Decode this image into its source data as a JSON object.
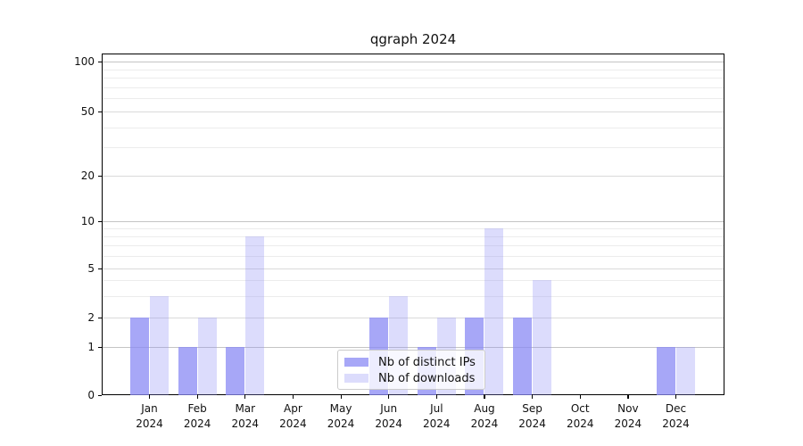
{
  "figure": {
    "background": "#ffffff",
    "text_color": "#111111",
    "spine_color": "#000000"
  },
  "chart_data": {
    "type": "bar",
    "title": "qgraph 2024",
    "xlabel": "",
    "ylabel": "",
    "categories": [
      "Jan",
      "Feb",
      "Mar",
      "Apr",
      "May",
      "Jun",
      "Jul",
      "Aug",
      "Sep",
      "Oct",
      "Nov",
      "Dec"
    ],
    "year_label": "2024",
    "series": [
      {
        "name": "Nb of distinct IPs",
        "color": "rgba(138,138,244,0.75)",
        "values": [
          2,
          1,
          1,
          0,
          0,
          2,
          1,
          2,
          2,
          0,
          0,
          1
        ]
      },
      {
        "name": "Nb of downloads",
        "color": "rgba(138,138,244,0.30)",
        "values": [
          3,
          2,
          8,
          0,
          0,
          3,
          2,
          9,
          4,
          0,
          0,
          1
        ]
      }
    ],
    "yscale": "symlog",
    "ylim": [
      0,
      112
    ],
    "y_major_ticks": [
      0,
      1,
      2,
      5,
      10,
      20,
      50,
      100
    ],
    "y_minor_gridlines": [
      3,
      4,
      6,
      7,
      8,
      9,
      30,
      40,
      60,
      70,
      80,
      90
    ],
    "grid": "horizontal",
    "gridline_color_power10": "#c4c4c4",
    "gridline_color_major": "#dadada",
    "gridline_color_minor": "#ececec",
    "legend_position": "lower center"
  }
}
